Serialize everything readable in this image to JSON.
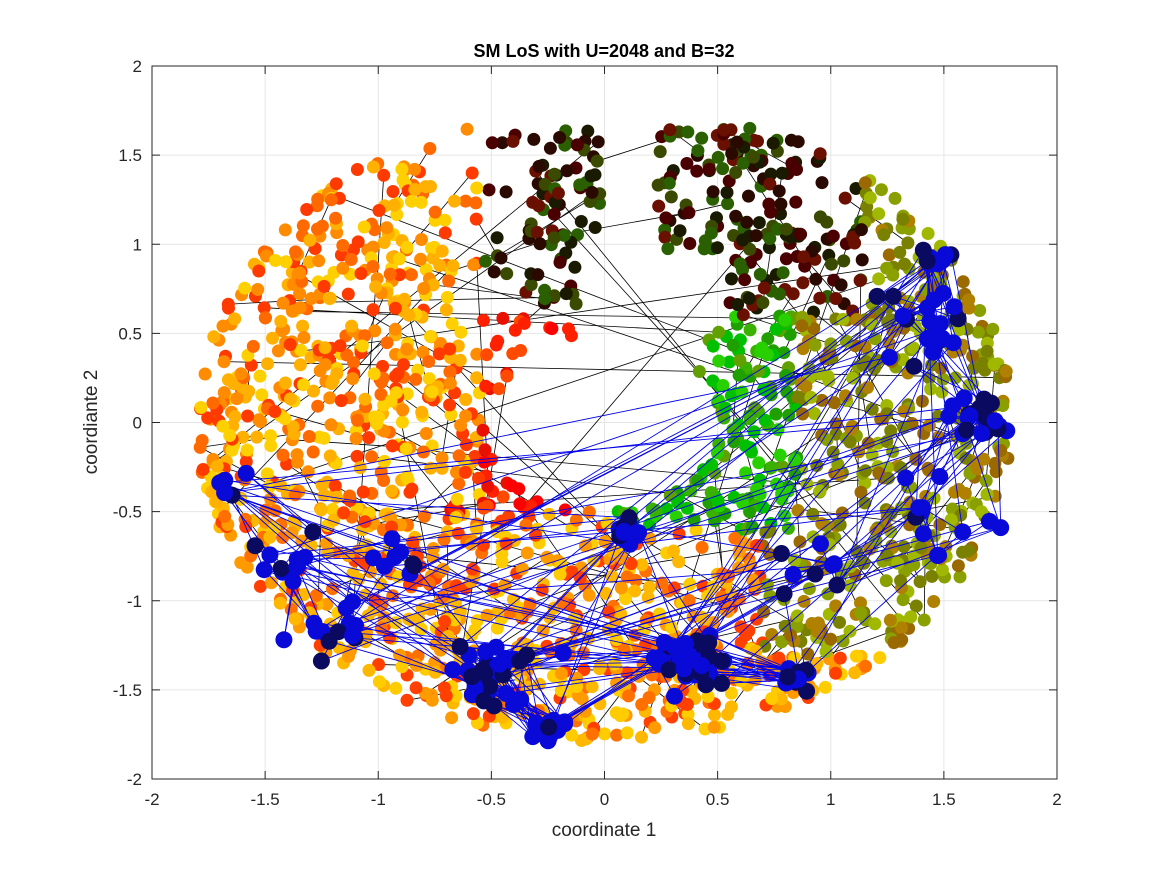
{
  "chart_data": {
    "type": "scatter",
    "title": "SM LoS with U=2048 and B=32",
    "xlabel": "coordinate 1",
    "ylabel": "coordiante 2",
    "xlim": [
      -2,
      2
    ],
    "ylim": [
      -2,
      2
    ],
    "xticks": [
      "-2",
      "-1.5",
      "-1",
      "-0.5",
      "0",
      "0.5",
      "1",
      "1.5",
      "2"
    ],
    "yticks": [
      "-2",
      "-1.5",
      "-1",
      "-0.5",
      "0",
      "0.5",
      "1",
      "1.5",
      "2"
    ],
    "grid": true,
    "legend": "none",
    "point_count": 2048,
    "annular_region": {
      "outer_radius": 1.8,
      "inner_radius": 0.5,
      "gap_direction": "top-center"
    },
    "color_groups": [
      {
        "region": "upper-left",
        "x_range": [
          -1.8,
          -0.5
        ],
        "y_range": [
          -0.4,
          1.65
        ],
        "colors": [
          "#ff8c00",
          "#ff6a00",
          "#ffb000",
          "#ff3a00",
          "#ffd000"
        ]
      },
      {
        "region": "center-red-arm",
        "x_range": [
          -0.8,
          -0.1
        ],
        "y_range": [
          -0.45,
          0.75
        ],
        "colors": [
          "#ff2000",
          "#ff0000",
          "#e81000",
          "#ff4a00"
        ]
      },
      {
        "region": "top-dark",
        "x_range": [
          -0.55,
          1.1
        ],
        "y_range": [
          0.6,
          1.8
        ],
        "colors": [
          "#4a0000",
          "#2a0a00",
          "#6a1000",
          "#1a1a00",
          "#3a4a00",
          "#2a6000"
        ]
      },
      {
        "region": "right-green",
        "x_range": [
          0.2,
          1.35
        ],
        "y_range": [
          -0.5,
          1.15
        ],
        "colors": [
          "#1fa000",
          "#00c000",
          "#3ab000",
          "#60a000",
          "#28d000"
        ]
      },
      {
        "region": "right-olive",
        "x_range": [
          0.7,
          1.85
        ],
        "y_range": [
          -1.3,
          0.9
        ],
        "colors": [
          "#8aa000",
          "#a0b800",
          "#7a8000",
          "#b08000",
          "#9a6a00"
        ]
      },
      {
        "region": "bottom",
        "x_range": [
          -1.6,
          1.2
        ],
        "y_range": [
          -1.8,
          -0.5
        ],
        "colors": [
          "#ff9a00",
          "#ffb800",
          "#ff7000",
          "#ff4000",
          "#ffcc00"
        ]
      }
    ],
    "selected_color": "#0a0ad8",
    "selected_dark_color": "#0a0a60",
    "selected_clusters": [
      {
        "cx": -1.65,
        "cy": -0.38,
        "n": 6,
        "spread": 0.07
      },
      {
        "cx": -1.4,
        "cy": -0.8,
        "n": 12,
        "spread": 0.15
      },
      {
        "cx": -1.2,
        "cy": -1.15,
        "n": 12,
        "spread": 0.14
      },
      {
        "cx": -0.95,
        "cy": -0.75,
        "n": 8,
        "spread": 0.12
      },
      {
        "cx": -0.5,
        "cy": -1.4,
        "n": 36,
        "spread": 0.14
      },
      {
        "cx": -0.25,
        "cy": -1.7,
        "n": 14,
        "spread": 0.07
      },
      {
        "cx": 0.12,
        "cy": -0.62,
        "n": 14,
        "spread": 0.06
      },
      {
        "cx": 0.4,
        "cy": -1.35,
        "n": 44,
        "spread": 0.13
      },
      {
        "cx": 0.85,
        "cy": -1.45,
        "n": 14,
        "spread": 0.06
      },
      {
        "cx": 0.95,
        "cy": -0.8,
        "n": 8,
        "spread": 0.18
      },
      {
        "cx": 1.45,
        "cy": 0.55,
        "n": 22,
        "spread": 0.18
      },
      {
        "cx": 1.65,
        "cy": 0.05,
        "n": 20,
        "spread": 0.12
      },
      {
        "cx": 1.45,
        "cy": -0.55,
        "n": 12,
        "spread": 0.18
      },
      {
        "cx": 1.5,
        "cy": 0.9,
        "n": 8,
        "spread": 0.07
      }
    ],
    "line_color": "#000000",
    "selected_line_color": "#0000ee"
  }
}
